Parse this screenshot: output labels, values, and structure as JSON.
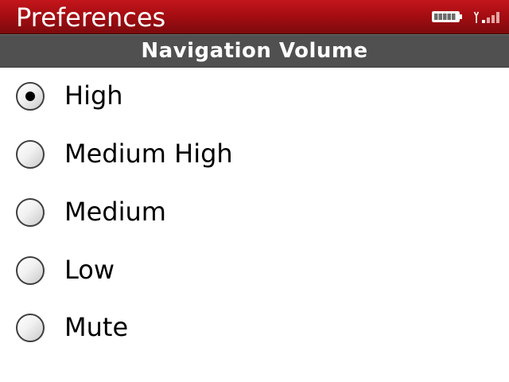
{
  "header": {
    "title": "Preferences",
    "battery_icon": "battery-full-icon",
    "signal_icon": "signal-strength-icon"
  },
  "section": {
    "title": "Navigation Volume"
  },
  "options": [
    {
      "label": "High",
      "selected": true
    },
    {
      "label": "Medium High",
      "selected": false
    },
    {
      "label": "Medium",
      "selected": false
    },
    {
      "label": "Low",
      "selected": false
    },
    {
      "label": "Mute",
      "selected": false
    }
  ],
  "colors": {
    "title_bar": "#a60d12",
    "section_header": "#505050"
  }
}
